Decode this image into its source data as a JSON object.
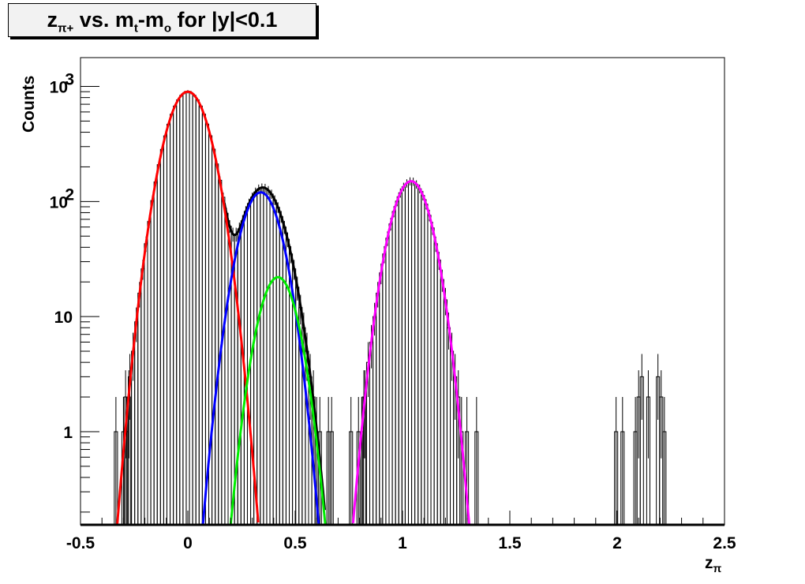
{
  "title": {
    "main": "z",
    "sub": "π+",
    "mid": " vs. m",
    "sub2": "t",
    "mid2": "-m",
    "sub3": "o",
    "tail": " for |y|<0.1"
  },
  "chart_data": {
    "type": "histogram-with-fits",
    "ylabel": "Counts",
    "xlabel": "z",
    "xlabel_sub": "π",
    "xlim": [
      -0.5,
      2.5
    ],
    "ylim": [
      0.155,
      1780
    ],
    "yscale": "log",
    "grid": false,
    "x_ticks": [
      "-0.5",
      "0",
      "0.5",
      "1",
      "1.5",
      "2",
      "2.5"
    ],
    "y_ticks": [
      {
        "value": 1,
        "label": "1"
      },
      {
        "value": 10,
        "label": "10"
      },
      {
        "value": 100,
        "label": "10",
        "exp": "2"
      },
      {
        "value": 1000,
        "label": "10",
        "exp": "3"
      }
    ],
    "histogram": {
      "bin_width": 0.015,
      "main_range": [
        -0.3,
        1.3
      ],
      "main_counts_follow_fit_sum": true,
      "extra_bins": [
        {
          "x": -0.335,
          "count": 1
        },
        {
          "x": -0.29,
          "count": 2
        },
        {
          "x": -0.275,
          "count": 2
        },
        {
          "x": 0.655,
          "count": 1
        },
        {
          "x": 0.67,
          "count": 1
        },
        {
          "x": 0.76,
          "count": 1
        },
        {
          "x": 0.82,
          "count": 2
        },
        {
          "x": 1.3,
          "count": 1
        },
        {
          "x": 1.345,
          "count": 1
        },
        {
          "x": 1.995,
          "count": 1
        },
        {
          "x": 2.025,
          "count": 1
        },
        {
          "x": 2.085,
          "count": 1
        },
        {
          "x": 2.1,
          "count": 2
        },
        {
          "x": 2.115,
          "count": 3
        },
        {
          "x": 2.145,
          "count": 2
        },
        {
          "x": 2.19,
          "count": 3
        },
        {
          "x": 2.205,
          "count": 2
        },
        {
          "x": 2.22,
          "count": 1
        }
      ]
    },
    "fits": [
      {
        "color": "#ff0000",
        "amplitude": 900,
        "mean": 0.0,
        "sigma": 0.079,
        "range": [
          -0.34,
          0.33
        ]
      },
      {
        "color": "#0000ff",
        "amplitude": 120,
        "mean": 0.34,
        "sigma": 0.074,
        "range": [
          0.06,
          0.62
        ]
      },
      {
        "color": "#00ee00",
        "amplitude": 22,
        "mean": 0.42,
        "sigma": 0.07,
        "range": [
          0.19,
          0.66
        ]
      },
      {
        "color": "#ff00ff",
        "amplitude": 150,
        "mean": 1.04,
        "sigma": 0.073,
        "range": [
          0.77,
          1.33
        ]
      }
    ],
    "total_fit": {
      "color": "#000000",
      "components": [
        0,
        1,
        2
      ],
      "range": [
        0.17,
        0.64
      ]
    }
  }
}
